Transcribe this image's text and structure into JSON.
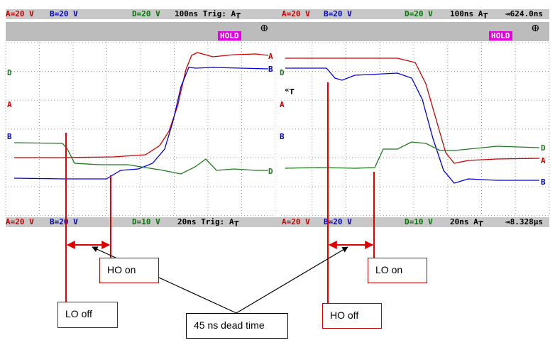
{
  "top_bar": {
    "left": {
      "a": "A=20 V",
      "b": "B=20 V",
      "d": "D=20 V",
      "time": "100ns Trig: A┲"
    },
    "right": {
      "a": "A=20 V",
      "b": "B=20 V",
      "d": "D=20 V",
      "time": "100ns A┲",
      "offset": "⇥624.0ns"
    }
  },
  "hold_label": "HOLD",
  "plug_icon": "ⴲ",
  "bottom_bar": {
    "left": {
      "a": "A=20 V",
      "b": "B=20 V",
      "d": "D=10 V",
      "time": "20ns Trig: A┲"
    },
    "right": {
      "a": "A=20 V",
      "b": "B=20 V",
      "d": "D=10 V",
      "time": "20ns A┲",
      "offset": "⇥8.328µs"
    }
  },
  "trace_markers": {
    "a": "A",
    "b": "B",
    "d": "D",
    "trigger": "«┲"
  },
  "colors": {
    "a": "#cc0000",
    "b": "#0000dd",
    "d": "#1e7a1e",
    "annotation": "#dd0000"
  },
  "annotations": {
    "ho_on": "HO on",
    "lo_off": "LO off",
    "dead_time": "45 ns dead time",
    "lo_on": "LO on",
    "ho_off": "HO off"
  }
}
